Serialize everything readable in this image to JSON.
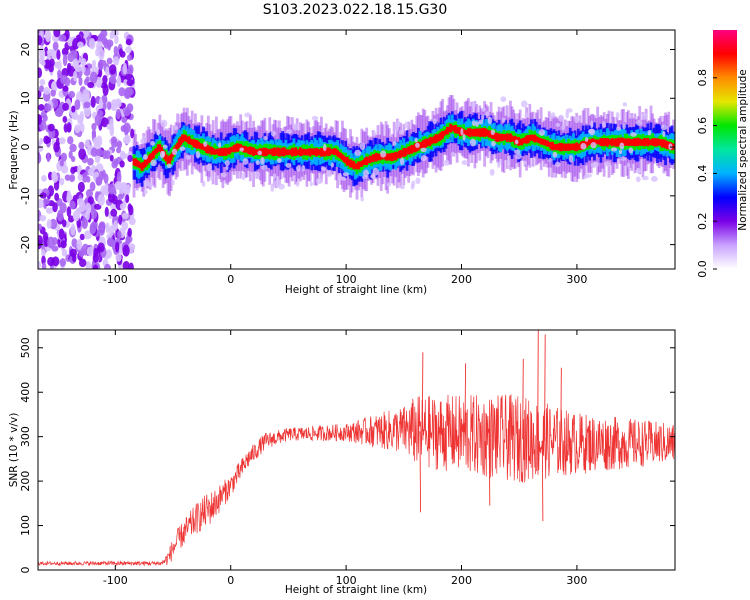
{
  "title": "S103.2023.022.18.15.G30",
  "chart_data": [
    {
      "type": "heatmap",
      "title": "S103.2023.022.18.15.G30",
      "xlabel": "Height of straight line (km)",
      "ylabel": "Frequency (Hz)",
      "xlim": [
        -167,
        385
      ],
      "ylim": [
        -25,
        24
      ],
      "x_ticks": [
        -100,
        0,
        100,
        200,
        300
      ],
      "y_ticks": [
        20,
        10,
        0,
        -10,
        -20
      ],
      "colorbar": {
        "label": "Normalized spectral amplitude",
        "range": [
          0,
          1
        ],
        "ticks": [
          0.0,
          0.2,
          0.4,
          0.6,
          0.8
        ],
        "colors": [
          "#ffffff",
          "#c9a2ff",
          "#7a00e6",
          "#0000ff",
          "#00b2ff",
          "#00e6a0",
          "#00e600",
          "#e6e600",
          "#ff8c00",
          "#ff0000",
          "#ff0080"
        ]
      },
      "noise_region_x": [
        -167,
        -85
      ],
      "ridge": {
        "x": [
          -85,
          -78,
          -70,
          -63,
          -55,
          -48,
          -42,
          -35,
          -25,
          -15,
          -5,
          5,
          20,
          40,
          55,
          70,
          80,
          90,
          100,
          108,
          115,
          125,
          140,
          150,
          160,
          170,
          180,
          190,
          200,
          210,
          220,
          230,
          240,
          250,
          260,
          270,
          280,
          290,
          300,
          310,
          320,
          330,
          340,
          350,
          360,
          370,
          383
        ],
        "y": [
          -3,
          -4,
          -2,
          0,
          -3,
          0,
          2,
          1,
          0,
          -1,
          -1,
          0,
          -1,
          -1,
          -1,
          -1,
          -1,
          -1,
          -3,
          -4,
          -3,
          -2,
          -2,
          -1,
          0,
          1,
          2,
          4,
          3,
          3,
          3,
          2,
          2,
          1,
          2,
          1,
          0,
          0,
          0,
          1,
          1,
          1,
          1,
          1,
          1,
          1,
          0
        ]
      },
      "legend": "none"
    },
    {
      "type": "line",
      "xlabel": "Height of straight line (km)",
      "ylabel": "SNR (10 * v/v)",
      "xlim": [
        -167,
        385
      ],
      "ylim": [
        0,
        540
      ],
      "x_ticks": [
        -100,
        0,
        100,
        200,
        300
      ],
      "y_ticks": [
        0,
        100,
        200,
        300,
        400,
        500
      ],
      "series_color": "#ee3333",
      "trend": {
        "x": [
          -167,
          -100,
          -60,
          -55,
          -45,
          -30,
          -15,
          0,
          15,
          30,
          50,
          100,
          150,
          200,
          250,
          300,
          385
        ],
        "y": [
          15,
          15,
          15,
          25,
          70,
          115,
          145,
          190,
          250,
          290,
          305,
          310,
          315,
          305,
          295,
          285,
          285
        ]
      },
      "spread": {
        "x": [
          -167,
          -60,
          -50,
          -20,
          0,
          50,
          100,
          150,
          160,
          200,
          250,
          300,
          385
        ],
        "y": [
          4,
          5,
          25,
          40,
          25,
          15,
          20,
          55,
          80,
          90,
          100,
          70,
          45
        ]
      },
      "peaks": [
        {
          "x": 166,
          "y": 490
        },
        {
          "x": 203,
          "y": 465
        },
        {
          "x": 253,
          "y": 475
        },
        {
          "x": 266,
          "y": 540
        },
        {
          "x": 272,
          "y": 530
        },
        {
          "x": 286,
          "y": 455
        }
      ],
      "troughs": [
        {
          "x": 164,
          "y": 130
        },
        {
          "x": 270,
          "y": 110
        },
        {
          "x": 224,
          "y": 145
        }
      ],
      "legend": "none"
    }
  ]
}
